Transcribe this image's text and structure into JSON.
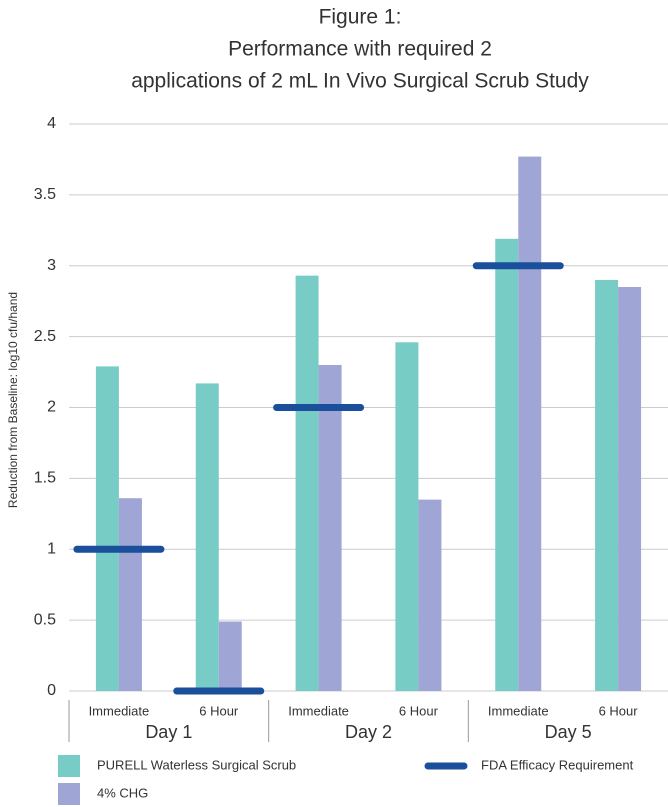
{
  "chart_data": {
    "type": "bar",
    "title": [
      "Figure 1:",
      "Performance with required 2",
      "applications of 2 mL In Vivo Surgical Scrub Study"
    ],
    "y_label": "Reduction from Baseline: log10 cfu/hand",
    "categories": [
      "Immediate",
      "6 Hour",
      "Immediate",
      "6 Hour",
      "Immediate",
      "6 Hour"
    ],
    "groups": [
      "Day 1",
      "Day 2",
      "Day 5"
    ],
    "series": [
      {
        "name": "PURELL Waterless Surgical Scrub",
        "color": "#77ccc6",
        "values": [
          2.29,
          2.17,
          2.93,
          2.46,
          3.19,
          2.9
        ]
      },
      {
        "name": "4% CHG",
        "color": "#9fa5d5",
        "values": [
          1.36,
          0.49,
          2.3,
          1.35,
          3.77,
          2.85
        ]
      }
    ],
    "reference": {
      "name": "FDA Efficacy Requirement",
      "color": "#1a4f9c",
      "values": [
        1,
        0,
        2,
        null,
        3,
        null
      ]
    },
    "ylim": [
      0,
      4
    ],
    "yticks": [
      0,
      0.5,
      1,
      1.5,
      2,
      2.5,
      3,
      3.5,
      4
    ],
    "grid": true
  }
}
